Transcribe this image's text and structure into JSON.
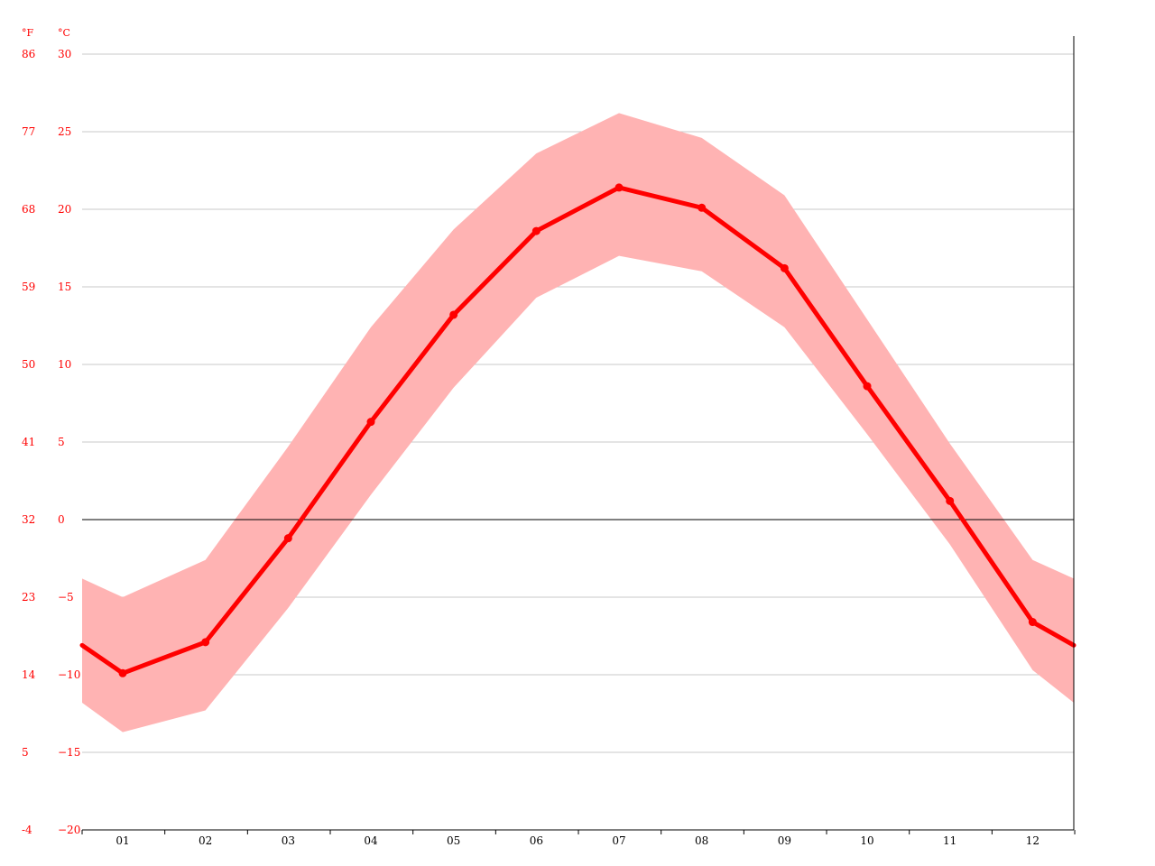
{
  "chart_data": {
    "type": "area",
    "categories": [
      "01",
      "02",
      "03",
      "04",
      "05",
      "06",
      "07",
      "08",
      "09",
      "10",
      "11",
      "12"
    ],
    "y_units": {
      "fahrenheit": "°F",
      "celsius": "°C"
    },
    "y_ticks_c": [
      30,
      25,
      20,
      15,
      10,
      5,
      0,
      -5,
      -10,
      -15,
      -20
    ],
    "y_ticks_f": [
      "86",
      "77",
      "68",
      "59",
      "50",
      "41",
      "32",
      "23",
      "14",
      "5",
      "-4"
    ],
    "ylim": [
      -20,
      30
    ],
    "series": [
      {
        "kind": "line",
        "values": [
          -9.9,
          -7.9,
          -1.2,
          6.3,
          13.2,
          18.6,
          21.4,
          20.1,
          16.2,
          8.6,
          1.2,
          -6.6
        ]
      },
      {
        "kind": "band",
        "high": [
          -5.0,
          -2.6,
          4.7,
          12.4,
          18.7,
          23.6,
          26.2,
          24.6,
          20.9,
          12.9,
          4.9,
          -2.6
        ],
        "low": [
          -13.7,
          -12.3,
          -5.7,
          1.6,
          8.5,
          14.3,
          17.0,
          16.0,
          12.4,
          5.5,
          -1.6,
          -9.7
        ]
      }
    ],
    "edge_values": {
      "line": -8.1,
      "high": -3.8,
      "low": -11.8
    },
    "grid": true,
    "colors": {
      "line": "#ff0000",
      "band": "#ffb3b3",
      "grid": "#c8c8c8",
      "zero_line": "#000000",
      "axis": "#000000",
      "y_labels": "#ff0000",
      "x_labels": "#000000"
    }
  }
}
